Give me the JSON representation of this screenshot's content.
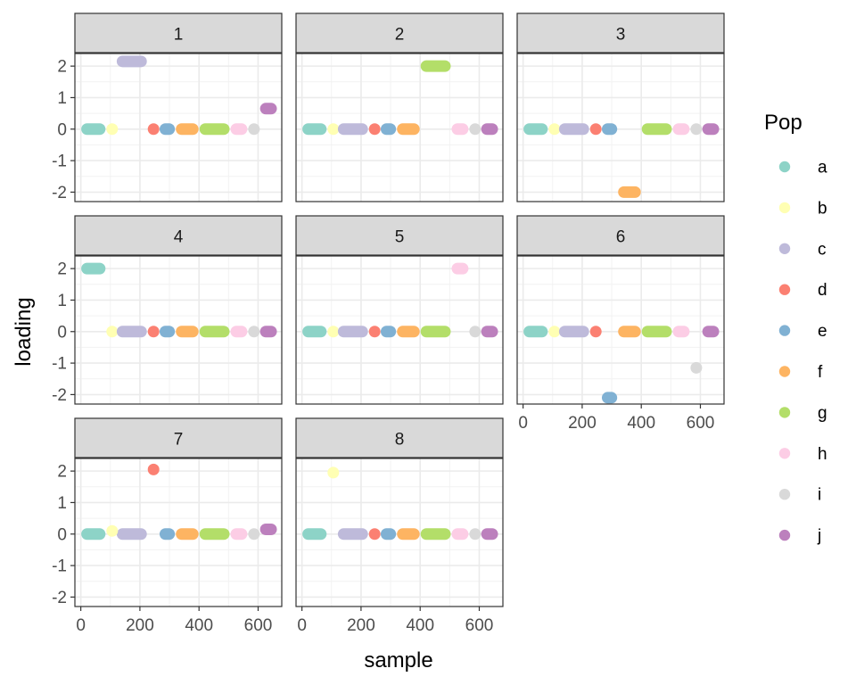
{
  "chart_data": {
    "type": "scatter",
    "title": "",
    "xlabel": "sample",
    "ylabel": "loading",
    "xlim": [
      -20,
      680
    ],
    "ylim": [
      -2.3,
      2.4
    ],
    "x_ticks": [
      0,
      200,
      400,
      600
    ],
    "y_ticks": [
      -2,
      -1,
      0,
      1,
      2
    ],
    "legend": {
      "title": "Pop",
      "position": "right",
      "entries": [
        {
          "label": "a",
          "color": "#8DD3C7"
        },
        {
          "label": "b",
          "color": "#FFFFB3"
        },
        {
          "label": "c",
          "color": "#BEBADA"
        },
        {
          "label": "d",
          "color": "#FB8072"
        },
        {
          "label": "e",
          "color": "#80B1D3"
        },
        {
          "label": "f",
          "color": "#FDB462"
        },
        {
          "label": "g",
          "color": "#B3DE69"
        },
        {
          "label": "h",
          "color": "#FCCDE5"
        },
        {
          "label": "i",
          "color": "#D9D9D9"
        },
        {
          "label": "j",
          "color": "#BC80BD"
        }
      ]
    },
    "pop_sample_ranges": [
      {
        "pop": "a",
        "from": 0,
        "to": 85
      },
      {
        "pop": "b",
        "from": 85,
        "to": 120
      },
      {
        "pop": "c",
        "from": 120,
        "to": 225
      },
      {
        "pop": "d",
        "from": 225,
        "to": 265
      },
      {
        "pop": "e",
        "from": 265,
        "to": 320
      },
      {
        "pop": "f",
        "from": 320,
        "to": 400
      },
      {
        "pop": "g",
        "from": 400,
        "to": 505
      },
      {
        "pop": "h",
        "from": 505,
        "to": 565
      },
      {
        "pop": "i",
        "from": 565,
        "to": 605
      },
      {
        "pop": "j",
        "from": 605,
        "to": 665
      }
    ],
    "panels": [
      {
        "label": "1",
        "nonzero": [
          {
            "pop": "c",
            "loading": 2.15
          },
          {
            "pop": "j",
            "loading": 0.65
          }
        ],
        "gaps": [
          {
            "from": 130,
            "to": 225
          }
        ]
      },
      {
        "label": "2",
        "nonzero": [
          {
            "pop": "g",
            "loading": 2.0
          }
        ],
        "gaps": []
      },
      {
        "label": "3",
        "nonzero": [
          {
            "pop": "f",
            "loading": -2.0
          }
        ],
        "gaps": []
      },
      {
        "label": "4",
        "nonzero": [
          {
            "pop": "a",
            "loading": 2.0
          }
        ],
        "gaps": []
      },
      {
        "label": "5",
        "nonzero": [
          {
            "pop": "h",
            "loading": 2.0
          }
        ],
        "gaps": []
      },
      {
        "label": "6",
        "nonzero": [
          {
            "pop": "e",
            "loading": -2.1
          },
          {
            "pop": "i",
            "loading": -1.15
          }
        ],
        "gaps": []
      },
      {
        "label": "7",
        "nonzero": [
          {
            "pop": "d",
            "loading": 2.05
          },
          {
            "pop": "j",
            "loading": 0.15
          },
          {
            "pop": "b",
            "loading": 0.1
          }
        ],
        "gaps": []
      },
      {
        "label": "8",
        "nonzero": [
          {
            "pop": "b",
            "loading": 1.95
          }
        ],
        "gaps": []
      }
    ]
  }
}
